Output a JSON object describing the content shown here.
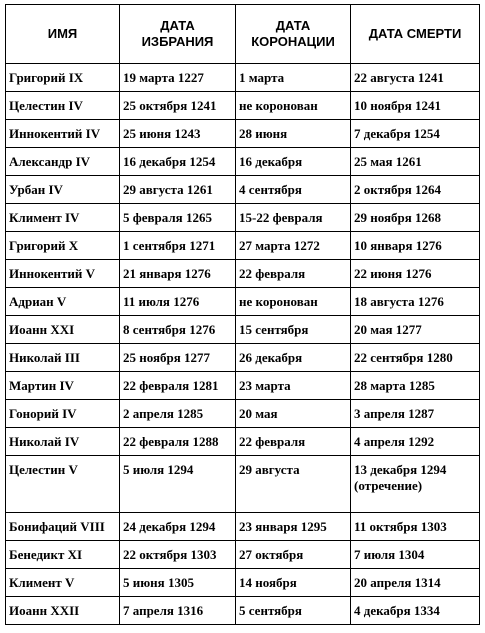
{
  "headers": [
    "ИМЯ",
    "ДАТА ИЗБРАНИЯ",
    "ДАТА КОРОНАЦИИ",
    "ДАТА СМЕРТИ"
  ],
  "header_lines": [
    [
      "ИМЯ"
    ],
    [
      "ДАТА",
      "ИЗБРАНИЯ"
    ],
    [
      "ДАТА",
      "КОРОНАЦИИ"
    ],
    [
      "ДАТА СМЕРТИ"
    ]
  ],
  "rows": [
    {
      "name": "Григорий IX",
      "elected": "19 марта 1227",
      "crowned": "1 марта",
      "died": "22 августа 1241"
    },
    {
      "name": "Целестин IV",
      "elected": "25 октября 1241",
      "crowned": "не коронован",
      "died": "10 ноября 1241"
    },
    {
      "name": "Иннокентий IV",
      "elected": "25 июня 1243",
      "crowned": "28 июня",
      "died": "7 декабря 1254"
    },
    {
      "name": "Александр IV",
      "elected": "16 декабря 1254",
      "crowned": "16 декабря",
      "died": "25 мая 1261"
    },
    {
      "name": "Урбан IV",
      "elected": "29 августа 1261",
      "crowned": "4 сентября",
      "died": "2 октября 1264"
    },
    {
      "name": "Климент IV",
      "elected": "5 февраля 1265",
      "crowned": "15-22 февраля",
      "died": "29 ноября 1268"
    },
    {
      "name": "Григорий X",
      "elected": "1 сентября 1271",
      "crowned": "27 марта 1272",
      "died": "10 января 1276"
    },
    {
      "name": "Иннокентий V",
      "elected": "21 января 1276",
      "crowned": "22 февраля",
      "died": "22 июня 1276"
    },
    {
      "name": "Адриан V",
      "elected": "11 июля 1276",
      "crowned": "не коронован",
      "died": "18 августа 1276"
    },
    {
      "name": "Иоанн XXI",
      "elected": "8 сентября 1276",
      "crowned": "15 сентября",
      "died": "20 мая 1277"
    },
    {
      "name": "Николай III",
      "elected": "25 ноября 1277",
      "crowned": "26 декабря",
      "died": "22 сентября 1280"
    },
    {
      "name": "Мартин IV",
      "elected": "22 февраля 1281",
      "crowned": "23 марта",
      "died": "28 марта 1285"
    },
    {
      "name": "Гонорий IV",
      "elected": "2 апреля 1285",
      "crowned": "20 мая",
      "died": "3 апреля 1287"
    },
    {
      "name": "Николай IV",
      "elected": "22 февраля 1288",
      "crowned": "22 февраля",
      "died": "4 апреля 1292"
    },
    {
      "name": "Целестин V",
      "elected": "5 июля 1294",
      "crowned": "29 августа",
      "died": "13 декабря 1294",
      "died_note": "(отречение)"
    },
    {
      "name": "Бонифаций VIII",
      "elected": "24 декабря 1294",
      "crowned": "23 января 1295",
      "died": "11 октября 1303"
    },
    {
      "name": "Бенедикт XI",
      "elected": "22 октября 1303",
      "crowned": "27 октября",
      "died": "7 июля 1304"
    },
    {
      "name": "Климент V",
      "elected": "5 июня 1305",
      "crowned": "14 ноября",
      "died": "20 апреля 1314"
    },
    {
      "name": "Иоанн XXII",
      "elected": "7 апреля 1316",
      "crowned": "5 сентября",
      "died": "4 декабря 1334"
    }
  ]
}
